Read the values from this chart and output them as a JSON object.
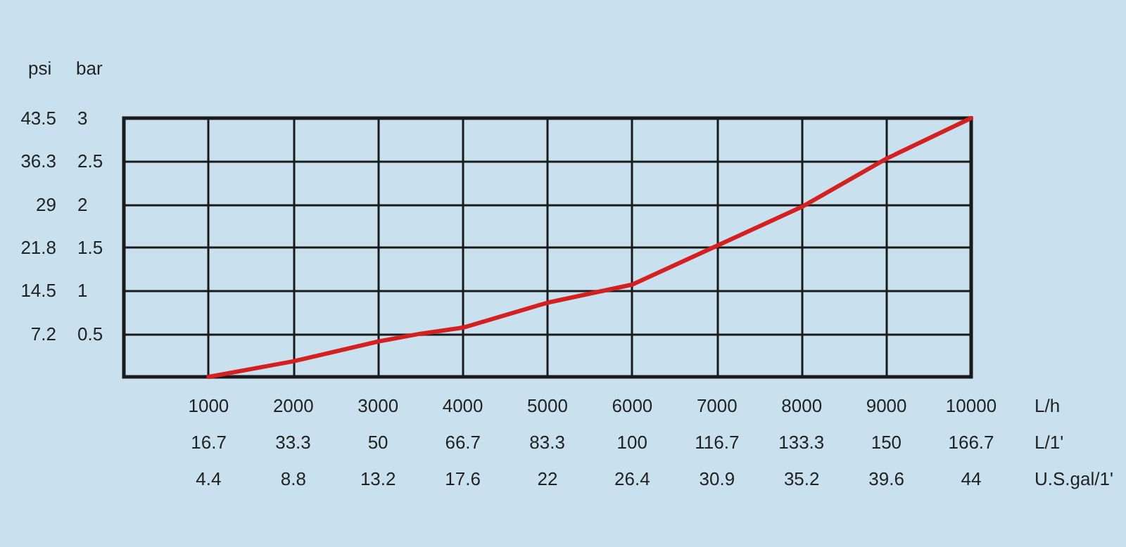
{
  "chart_data": {
    "type": "line",
    "xlabel": "L/h",
    "x2label": "L/1'",
    "ylabel": "psi",
    "y2label": "bar",
    "x": [
      1000,
      2000,
      3000,
      3500,
      4000,
      5000,
      6000,
      7000,
      8000,
      9000,
      10000
    ],
    "series": [
      {
        "color": "#d42020",
        "axis": "y2",
        "values": [
          0,
          0.18,
          0.41,
          0.5,
          0.57,
          0.86,
          1.07,
          1.52,
          1.97,
          2.53,
          3.0
        ]
      }
    ],
    "xlim": [
      0,
      10000
    ],
    "xticks": [
      1000,
      2000,
      3000,
      4000,
      5000,
      6000,
      7000,
      8000,
      9000,
      10000
    ],
    "x2lim": [
      0,
      166.7
    ],
    "x2ticks": [
      16.7,
      33.3,
      50,
      66.7,
      83.3,
      100,
      116.7,
      133.3,
      150,
      166.7
    ],
    "ylim": [
      0,
      43.5
    ],
    "yticks": [
      7.2,
      14.5,
      21.8,
      29,
      36.3,
      43.5
    ],
    "y2lim": [
      0,
      3
    ],
    "y2ticks": [
      0.5,
      1,
      1.5,
      2,
      2.5,
      3
    ],
    "annotations": [
      "4.4",
      "8.8",
      "13.2",
      "17.6",
      "22",
      "26.4",
      "30.9",
      "35.2",
      "39.6",
      "44",
      "U.S.gal/1'"
    ],
    "grid": true,
    "marker": "none",
    "line_style": "solid"
  }
}
